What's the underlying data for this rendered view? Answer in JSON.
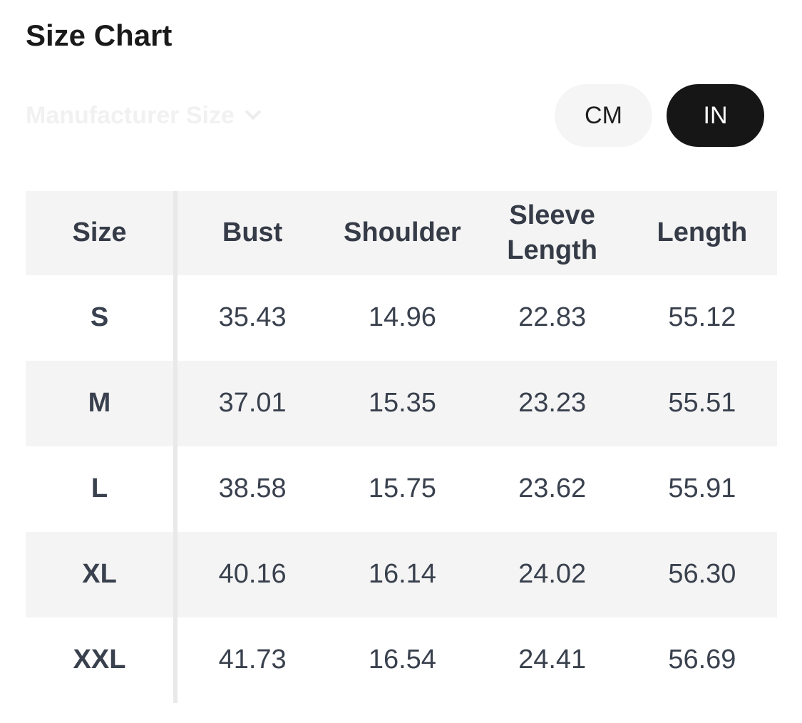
{
  "title": "Size Chart",
  "manufacturer_size": {
    "label": "Manufacturer Size"
  },
  "unit_toggle": {
    "cm_label": "CM",
    "in_label": "IN",
    "selected": "IN"
  },
  "table": {
    "columns": [
      "Size",
      "Bust",
      "Shoulder",
      "Sleeve Length",
      "Length"
    ],
    "rows": [
      {
        "size": "S",
        "bust": "35.43",
        "shoulder": "14.96",
        "sleeve_length": "22.83",
        "length": "55.12"
      },
      {
        "size": "M",
        "bust": "37.01",
        "shoulder": "15.35",
        "sleeve_length": "23.23",
        "length": "55.51"
      },
      {
        "size": "L",
        "bust": "38.58",
        "shoulder": "15.75",
        "sleeve_length": "23.62",
        "length": "55.91"
      },
      {
        "size": "XL",
        "bust": "40.16",
        "shoulder": "16.14",
        "sleeve_length": "24.02",
        "length": "56.30"
      },
      {
        "size": "XXL",
        "bust": "41.73",
        "shoulder": "16.54",
        "sleeve_length": "24.41",
        "length": "56.69"
      }
    ]
  },
  "colors": {
    "pill_active_bg": "#161616",
    "pill_active_text": "#ffffff",
    "pill_inactive_bg": "#f5f5f5",
    "pill_inactive_text": "#1e1e1e",
    "row_alt_bg": "#f4f4f4",
    "header_text": "#353b47",
    "body_text": "#3a414e",
    "divider": "#e9e9e9",
    "ghosted_label": "#f1f1f1",
    "title_text": "#1a1a1a"
  }
}
